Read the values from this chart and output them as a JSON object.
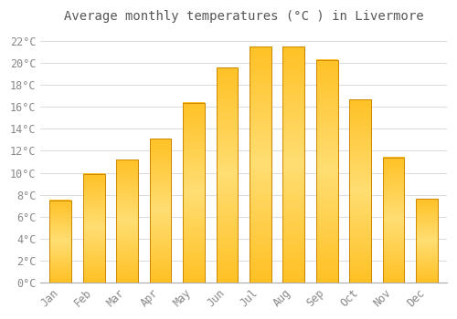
{
  "title": "Average monthly temperatures (°C ) in Livermore",
  "months": [
    "Jan",
    "Feb",
    "Mar",
    "Apr",
    "May",
    "Jun",
    "Jul",
    "Aug",
    "Sep",
    "Oct",
    "Nov",
    "Dec"
  ],
  "values": [
    7.5,
    9.9,
    11.2,
    13.1,
    16.4,
    19.6,
    21.5,
    21.5,
    20.3,
    16.7,
    11.4,
    7.6
  ],
  "bar_color": "#FFC125",
  "bar_edge_color": "#CC8800",
  "background_color": "#FFFFFF",
  "grid_color": "#DDDDDD",
  "text_color": "#888888",
  "ylim": [
    0,
    23
  ],
  "ytick_values": [
    0,
    2,
    4,
    6,
    8,
    10,
    12,
    14,
    16,
    18,
    20,
    22
  ],
  "title_fontsize": 10,
  "tick_fontsize": 8.5
}
